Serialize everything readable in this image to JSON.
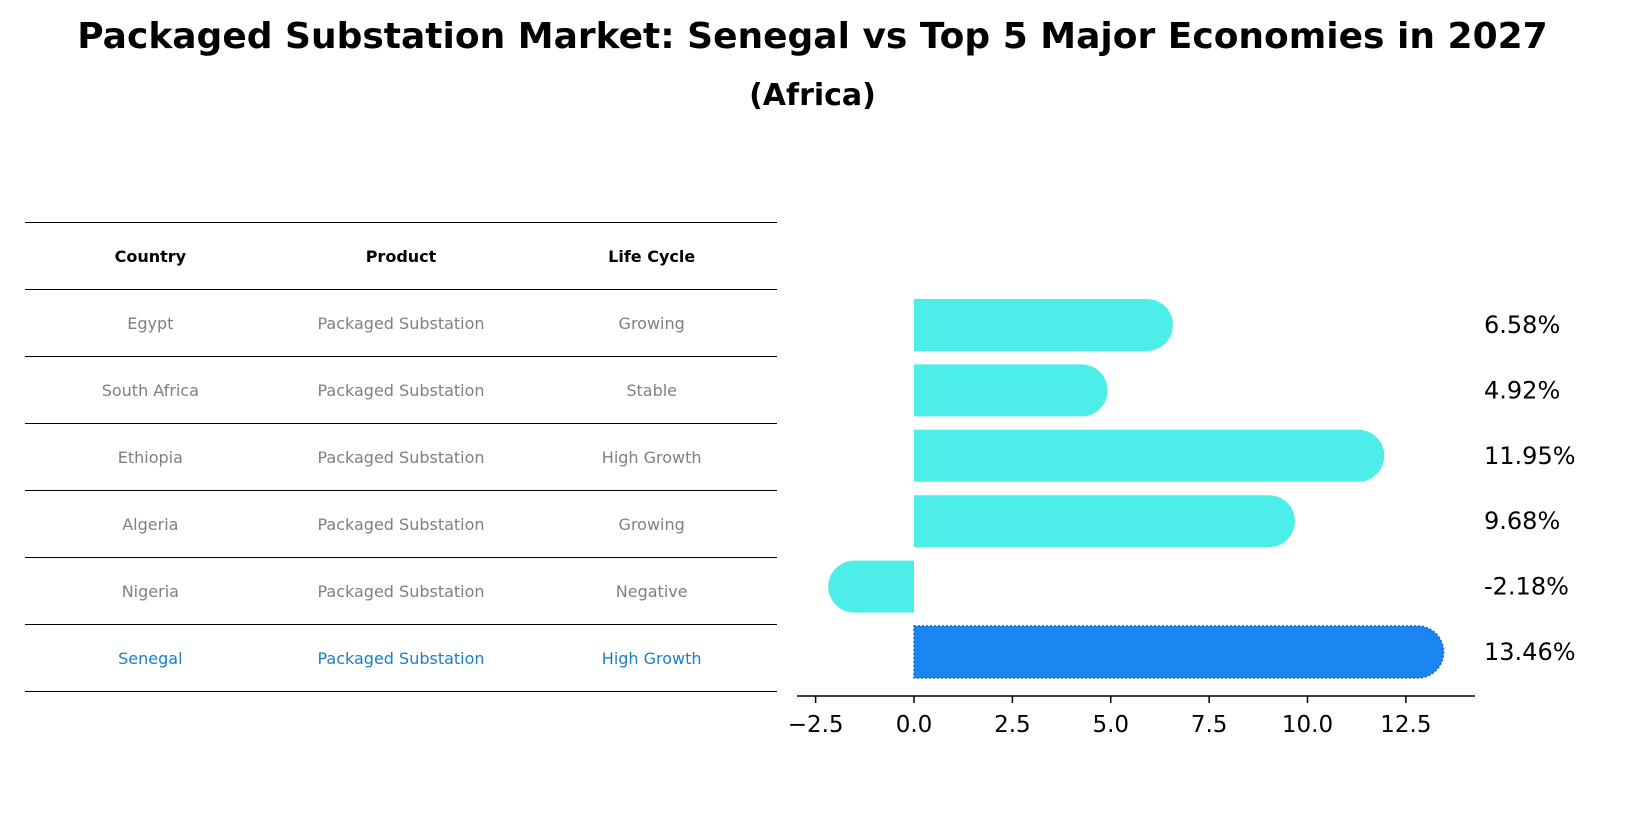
{
  "title": "Packaged Substation Market: Senegal vs Top 5 Major Economies in 2027",
  "subtitle": "(Africa)",
  "table": {
    "headers": [
      "Country",
      "Product",
      "Life Cycle"
    ],
    "rows": [
      {
        "country": "Egypt",
        "product": "Packaged Substation",
        "life_cycle": "Growing"
      },
      {
        "country": "South Africa",
        "product": "Packaged Substation",
        "life_cycle": "Stable"
      },
      {
        "country": "Ethiopia",
        "product": "Packaged Substation",
        "life_cycle": "High Growth"
      },
      {
        "country": "Algeria",
        "product": "Packaged Substation",
        "life_cycle": "Growing"
      },
      {
        "country": "Nigeria",
        "product": "Packaged Substation",
        "life_cycle": "Negative"
      },
      {
        "country": "Senegal",
        "product": "Packaged Substation",
        "life_cycle": "High Growth"
      }
    ]
  },
  "chart_data": {
    "type": "bar",
    "orientation": "horizontal",
    "categories": [
      "Egypt",
      "South Africa",
      "Ethiopia",
      "Algeria",
      "Nigeria",
      "Senegal"
    ],
    "values": [
      6.58,
      4.92,
      11.95,
      9.68,
      -2.18,
      13.46
    ],
    "value_labels": [
      "6.58%",
      "4.92%",
      "11.95%",
      "9.68%",
      "-2.18%",
      "13.46%"
    ],
    "x_ticks": [
      "−2.5",
      "0.0",
      "2.5",
      "5.0",
      "7.5",
      "10.0",
      "12.5"
    ],
    "xlim": [
      -3.0,
      14.2
    ],
    "highlight": "Senegal",
    "colors": {
      "default": "#4deeea",
      "highlight": "#1a85f0"
    },
    "grid": false,
    "legend": "none"
  }
}
